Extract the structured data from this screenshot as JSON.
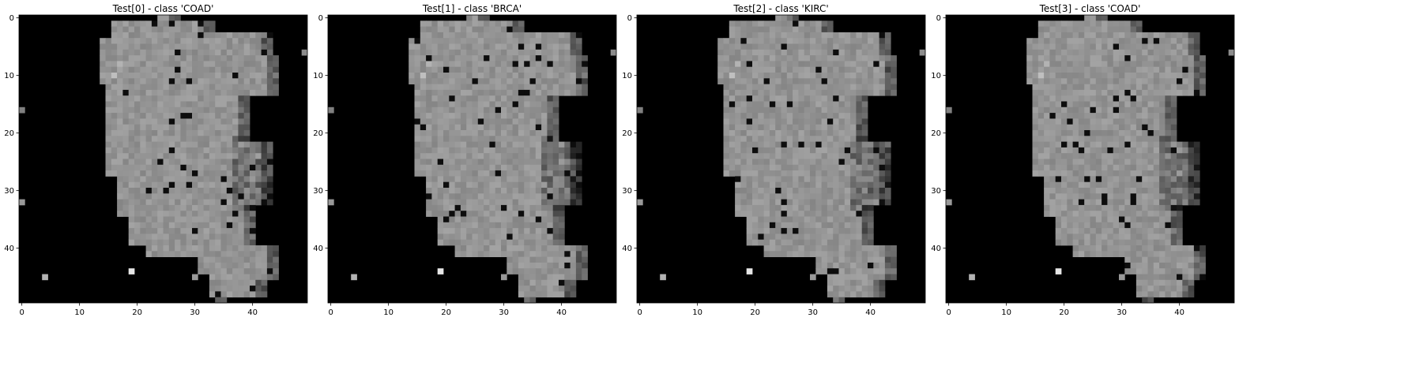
{
  "chart_data": [
    {
      "type": "heatmap",
      "title": "Test[0] - class 'COAD'",
      "cmap": "gray",
      "shape": [
        50,
        50
      ],
      "xticks": [
        "0",
        "10",
        "20",
        "30",
        "40"
      ],
      "yticks": [
        "0",
        "10",
        "20",
        "30",
        "40"
      ],
      "xlim": [
        -0.5,
        49.5
      ],
      "ylim": [
        49.5,
        -0.5
      ],
      "grid": false
    },
    {
      "type": "heatmap",
      "title": "Test[1] - class 'BRCA'",
      "cmap": "gray",
      "shape": [
        50,
        50
      ],
      "xticks": [
        "0",
        "10",
        "20",
        "30",
        "40"
      ],
      "yticks": [
        "0",
        "10",
        "20",
        "30",
        "40"
      ],
      "xlim": [
        -0.5,
        49.5
      ],
      "ylim": [
        49.5,
        -0.5
      ],
      "grid": false
    },
    {
      "type": "heatmap",
      "title": "Test[2] - class 'KIRC'",
      "cmap": "gray",
      "shape": [
        50,
        50
      ],
      "xticks": [
        "0",
        "10",
        "20",
        "30",
        "40"
      ],
      "yticks": [
        "0",
        "10",
        "20",
        "30",
        "40"
      ],
      "xlim": [
        -0.5,
        49.5
      ],
      "ylim": [
        49.5,
        -0.5
      ],
      "grid": false
    },
    {
      "type": "heatmap",
      "title": "Test[3] - class 'COAD'",
      "cmap": "gray",
      "shape": [
        50,
        50
      ],
      "xticks": [
        "0",
        "10",
        "20",
        "30",
        "40"
      ],
      "yticks": [
        "0",
        "10",
        "20",
        "30",
        "40"
      ],
      "xlim": [
        -0.5,
        49.5
      ],
      "ylim": [
        49.5,
        -0.5
      ],
      "grid": false
    }
  ]
}
